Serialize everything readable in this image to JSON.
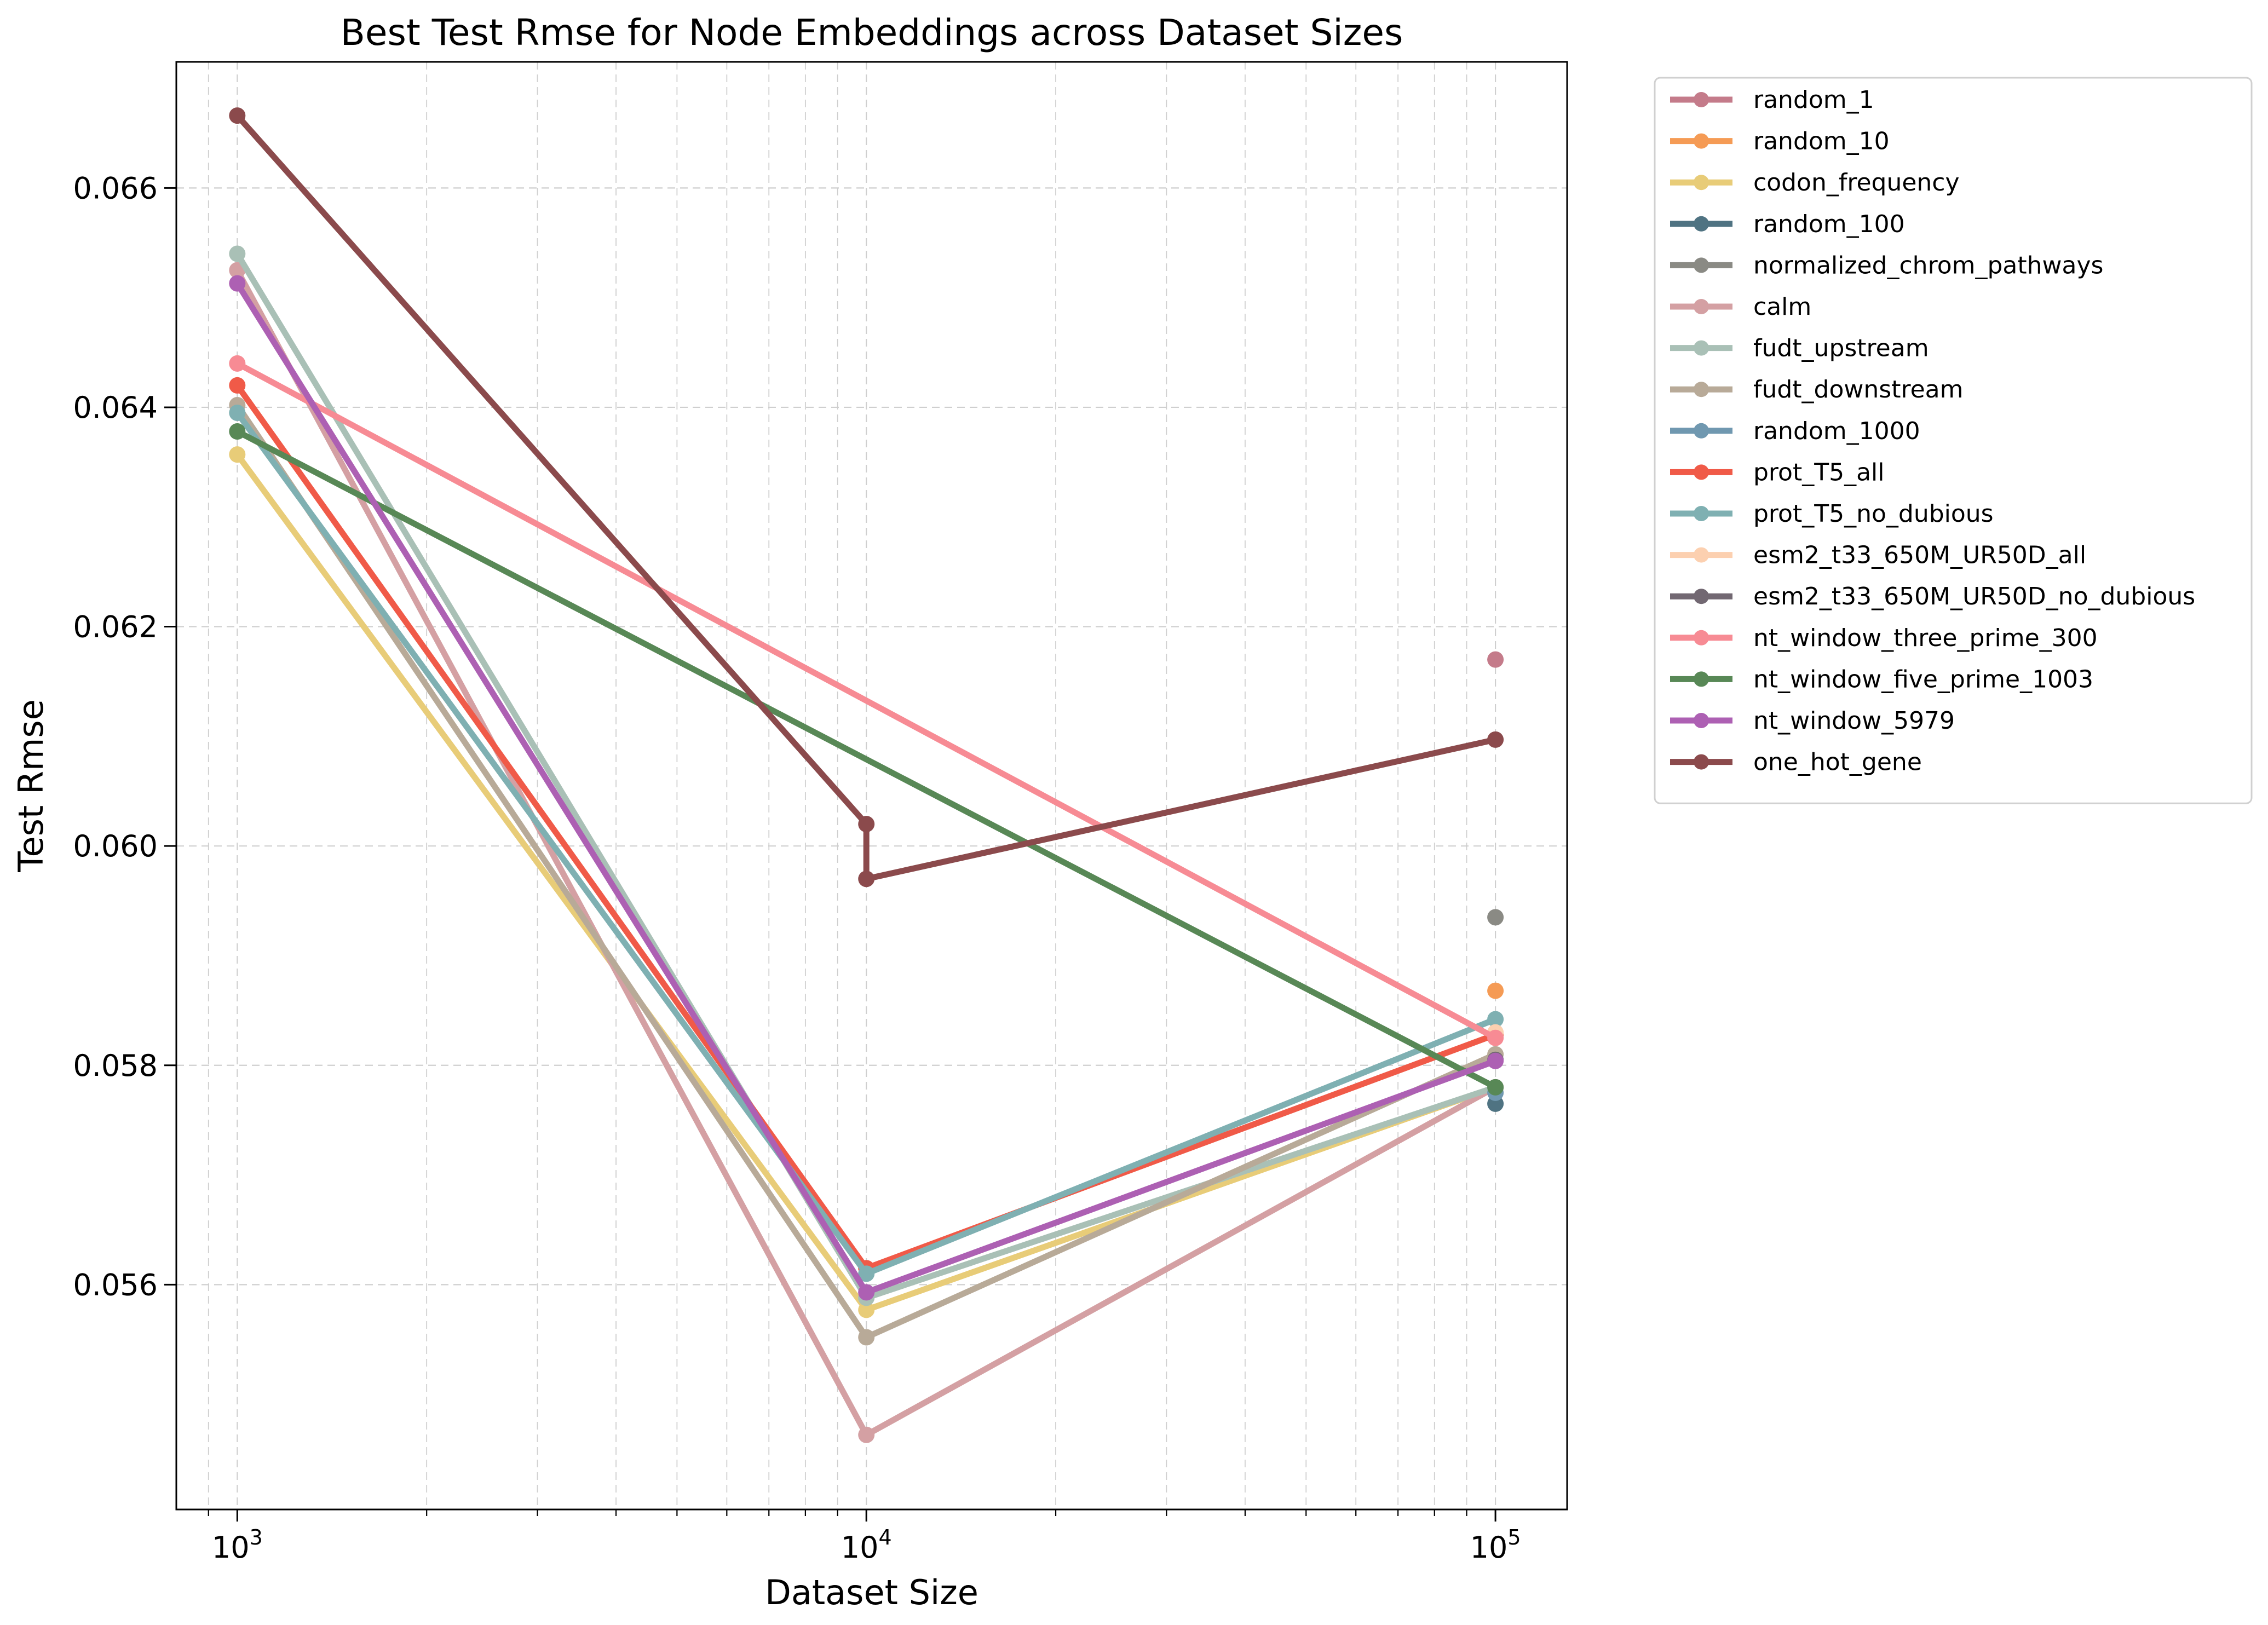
{
  "chart_data": {
    "type": "line",
    "title": "Best Test Rmse for Node Embeddings across Dataset Sizes",
    "xlabel": "Dataset Size",
    "ylabel": "Test Rmse",
    "xscale": "log",
    "xlim": [
      800,
      130000
    ],
    "ylim": [
      0.05395,
      0.06715
    ],
    "x_ticks": [
      {
        "value": 1000,
        "base": "10",
        "exp": "3"
      },
      {
        "value": 10000,
        "base": "10",
        "exp": "4"
      },
      {
        "value": 100000,
        "base": "10",
        "exp": "5"
      }
    ],
    "y_ticks": [
      {
        "value": 0.056,
        "label": "0.056"
      },
      {
        "value": 0.058,
        "label": "0.058"
      },
      {
        "value": 0.06,
        "label": "0.060"
      },
      {
        "value": 0.062,
        "label": "0.062"
      },
      {
        "value": 0.064,
        "label": "0.064"
      },
      {
        "value": 0.066,
        "label": "0.066"
      }
    ],
    "grid": true,
    "legend_position": "outside-right",
    "series": [
      {
        "name": "random_1",
        "color": "#c47b8a",
        "points": [
          [
            100000,
            0.0617
          ]
        ]
      },
      {
        "name": "random_10",
        "color": "#f59b55",
        "points": [
          [
            100000,
            0.05868
          ]
        ]
      },
      {
        "name": "codon_frequency",
        "color": "#e8cc78",
        "points": [
          [
            1000,
            0.06357
          ],
          [
            10000,
            0.05577
          ],
          [
            100000,
            0.0578
          ]
        ]
      },
      {
        "name": "random_100",
        "color": "#4f7382",
        "points": [
          [
            100000,
            0.05765
          ]
        ]
      },
      {
        "name": "normalized_chrom_pathways",
        "color": "#8a8a84",
        "points": [
          [
            100000,
            0.05935
          ]
        ]
      },
      {
        "name": "calm",
        "color": "#d4a0a3",
        "points": [
          [
            1000,
            0.06525
          ],
          [
            10000,
            0.05463
          ],
          [
            100000,
            0.0578
          ]
        ]
      },
      {
        "name": "fudt_upstream",
        "color": "#a9c0b6",
        "points": [
          [
            1000,
            0.0654
          ],
          [
            10000,
            0.05588
          ],
          [
            100000,
            0.0578
          ]
        ]
      },
      {
        "name": "fudt_downstream",
        "color": "#b8aa98",
        "points": [
          [
            1000,
            0.06402
          ],
          [
            10000,
            0.05552
          ],
          [
            100000,
            0.0581
          ]
        ]
      },
      {
        "name": "random_1000",
        "color": "#7098b0",
        "points": [
          [
            100000,
            0.05775
          ]
        ]
      },
      {
        "name": "prot_T5_all",
        "color": "#f05a48",
        "points": [
          [
            1000,
            0.0642
          ],
          [
            10000,
            0.05615
          ],
          [
            100000,
            0.05828
          ]
        ]
      },
      {
        "name": "prot_T5_no_dubious",
        "color": "#7fb0b2",
        "points": [
          [
            1000,
            0.06395
          ],
          [
            10000,
            0.0561
          ],
          [
            100000,
            0.05842
          ]
        ]
      },
      {
        "name": "esm2_t33_650M_UR50D_all",
        "color": "#fcd0b0",
        "points": [
          [
            100000,
            0.0583
          ]
        ]
      },
      {
        "name": "esm2_t33_650M_UR50D_no_dubious",
        "color": "#726872",
        "points": [
          [
            100000,
            0.05805
          ]
        ]
      },
      {
        "name": "nt_window_three_prime_300",
        "color": "#f78b94",
        "points": [
          [
            1000,
            0.0644
          ],
          [
            100000,
            0.05825
          ]
        ]
      },
      {
        "name": "nt_window_five_prime_1003",
        "color": "#588856",
        "points": [
          [
            1000,
            0.06378
          ],
          [
            100000,
            0.0578
          ]
        ]
      },
      {
        "name": "nt_window_5979",
        "color": "#ad60b3",
        "points": [
          [
            1000,
            0.06513
          ],
          [
            10000,
            0.05593
          ],
          [
            100000,
            0.05804
          ]
        ]
      },
      {
        "name": "one_hot_gene",
        "color": "#8b4a4c",
        "points": [
          [
            1000,
            0.06666
          ],
          [
            10000,
            0.0602
          ],
          [
            10000,
            0.0597
          ],
          [
            100000,
            0.06097
          ]
        ]
      }
    ]
  }
}
